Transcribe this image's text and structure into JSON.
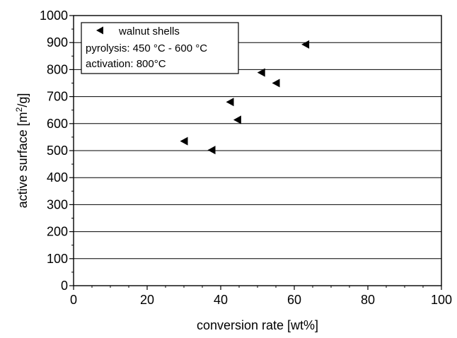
{
  "chart_data": {
    "type": "scatter",
    "xlabel": "conversion rate [wt%]",
    "ylabel": {
      "before": "active surface [m",
      "sup": "2",
      "after": "/g]"
    },
    "xlim": [
      0,
      100
    ],
    "ylim": [
      0,
      1000
    ],
    "x_ticks": [
      "0",
      "20",
      "40",
      "60",
      "80",
      "100"
    ],
    "y_ticks": [
      "0",
      "100",
      "200",
      "300",
      "400",
      "500",
      "600",
      "700",
      "800",
      "900",
      "1000"
    ],
    "grid": "horizontal",
    "marker": "left-triangle",
    "marker_color": "#000000",
    "series": [
      {
        "name": "walnut shells",
        "points": [
          {
            "x": 63,
            "y": 893
          },
          {
            "x": 51,
            "y": 789
          },
          {
            "x": 55,
            "y": 750
          },
          {
            "x": 42.5,
            "y": 680
          },
          {
            "x": 44.5,
            "y": 614
          },
          {
            "x": 30,
            "y": 535
          },
          {
            "x": 37.5,
            "y": 502
          }
        ]
      }
    ],
    "legend": {
      "placement": "top-left",
      "entry": "walnut shells",
      "notes": [
        "pyrolysis: 450 °C - 600 °C",
        "activation: 800°C"
      ]
    }
  }
}
